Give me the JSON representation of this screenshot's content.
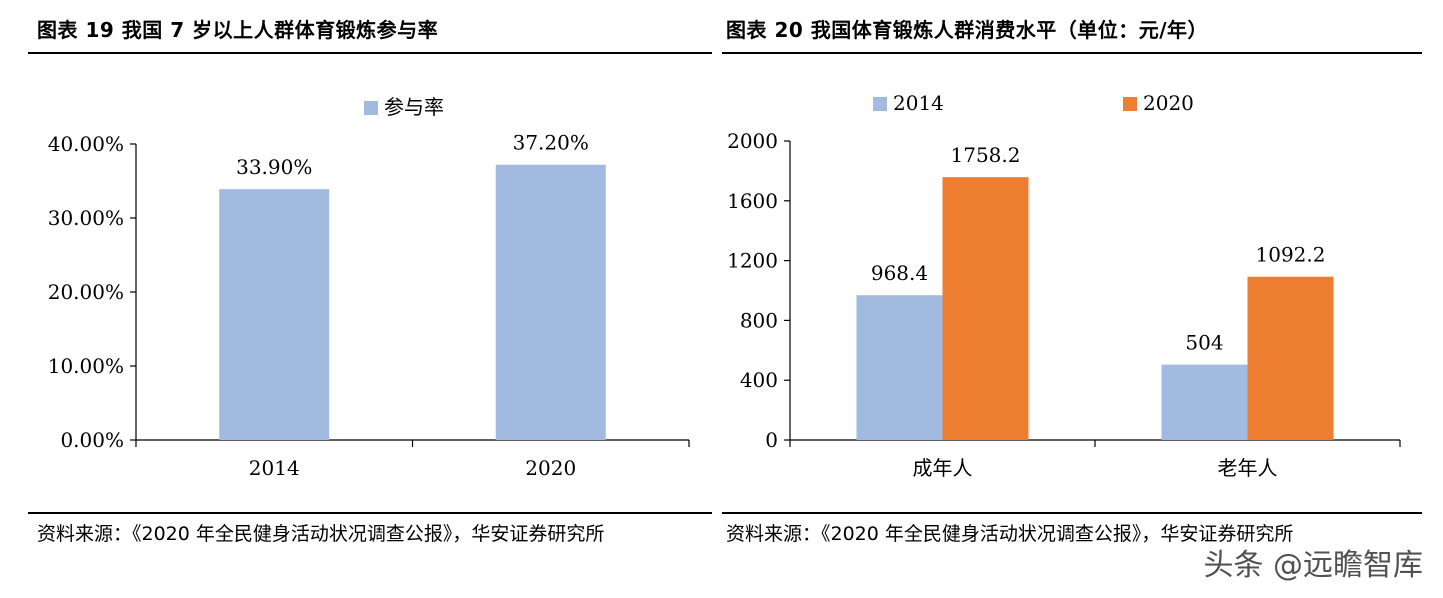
{
  "left": {
    "title": "图表 19 我国 7 岁以上人群体育锻炼参与率",
    "source": "资料来源：《2020 年全民健身活动状况调查公报》，华安证券研究所",
    "chart_data": {
      "type": "bar",
      "categories": [
        "2014",
        "2020"
      ],
      "series": [
        {
          "name": "参与率",
          "values": [
            33.9,
            37.2
          ],
          "labels": [
            "33.90%",
            "37.20%"
          ],
          "color": "#A2B9E0"
        }
      ],
      "ylim": [
        0,
        40
      ],
      "yticks": [
        0,
        10,
        20,
        30,
        40
      ],
      "ytick_labels": [
        "0.00%",
        "10.00%",
        "20.00%",
        "30.00%",
        "40.00%"
      ],
      "legend": "top-center",
      "grid": false
    }
  },
  "right": {
    "title": "图表 20 我国体育锻炼人群消费水平（单位：元/年）",
    "source": "资料来源：《2020 年全民健身活动状况调查公报》，华安证券研究所",
    "chart_data": {
      "type": "bar",
      "categories": [
        "成年人",
        "老年人"
      ],
      "series": [
        {
          "name": "2014",
          "values": [
            968.4,
            504
          ],
          "labels": [
            "968.4",
            "504"
          ],
          "color": "#A2B9E0"
        },
        {
          "name": "2020",
          "values": [
            1758.2,
            1092.2
          ],
          "labels": [
            "1758.2",
            "1092.2"
          ],
          "color": "#ED7D31"
        }
      ],
      "ylim": [
        0,
        2000
      ],
      "yticks": [
        0,
        400,
        800,
        1200,
        1600,
        2000
      ],
      "ytick_labels": [
        "0",
        "400",
        "800",
        "1200",
        "1600",
        "2000"
      ],
      "legend": "top-center",
      "grid": false
    }
  },
  "watermark": "头条 @远瞻智库"
}
